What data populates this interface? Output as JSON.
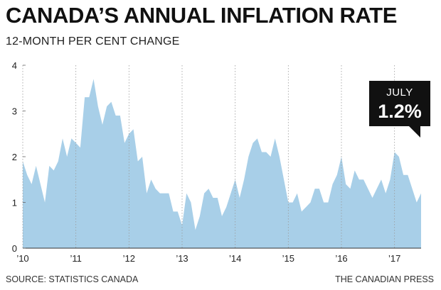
{
  "chart_data": {
    "type": "area",
    "title": "CANADA’S ANNUAL INFLATION RATE",
    "subtitle": "12-MONTH PER CENT CHANGE",
    "ylim": [
      0,
      4
    ],
    "yticks": [
      "0",
      "1",
      "2",
      "3",
      "4"
    ],
    "xticks": [
      "’10",
      "’11",
      "’12",
      "’13",
      "’14",
      "’15",
      "’16",
      "’17"
    ],
    "grid": "vertical dotted lines at each year",
    "x_start": "2010-01",
    "x_end": "2017-07",
    "series": [
      {
        "values": [
          1.9,
          1.6,
          1.4,
          1.8,
          1.4,
          1.0,
          1.8,
          1.7,
          1.9,
          2.4,
          2.0,
          2.4,
          2.3,
          2.2,
          3.3,
          3.3,
          3.7,
          3.1,
          2.7,
          3.1,
          3.2,
          2.9,
          2.9,
          2.3,
          2.5,
          2.6,
          1.9,
          2.0,
          1.2,
          1.5,
          1.3,
          1.2,
          1.2,
          1.2,
          0.8,
          0.8,
          0.5,
          1.2,
          1.0,
          0.4,
          0.7,
          1.2,
          1.3,
          1.1,
          1.1,
          0.7,
          0.9,
          1.2,
          1.5,
          1.1,
          1.5,
          2.0,
          2.3,
          2.4,
          2.1,
          2.1,
          2.0,
          2.4,
          2.0,
          1.5,
          1.0,
          1.0,
          1.2,
          0.8,
          0.9,
          1.0,
          1.3,
          1.3,
          1.0,
          1.0,
          1.4,
          1.6,
          2.0,
          1.4,
          1.3,
          1.7,
          1.5,
          1.5,
          1.3,
          1.1,
          1.3,
          1.5,
          1.2,
          1.5,
          2.1,
          2.0,
          1.6,
          1.6,
          1.3,
          1.0,
          1.2
        ]
      }
    ]
  },
  "callout": {
    "label": "JULY",
    "value": "1.2%"
  },
  "footer": {
    "source": "SOURCE: STATISTICS CANADA",
    "credit": "THE CANADIAN PRESS"
  },
  "colors": {
    "area_fill": "#a8cfe8",
    "grid": "#9a9a9a",
    "text": "#111111",
    "callout_bg": "#111111"
  }
}
